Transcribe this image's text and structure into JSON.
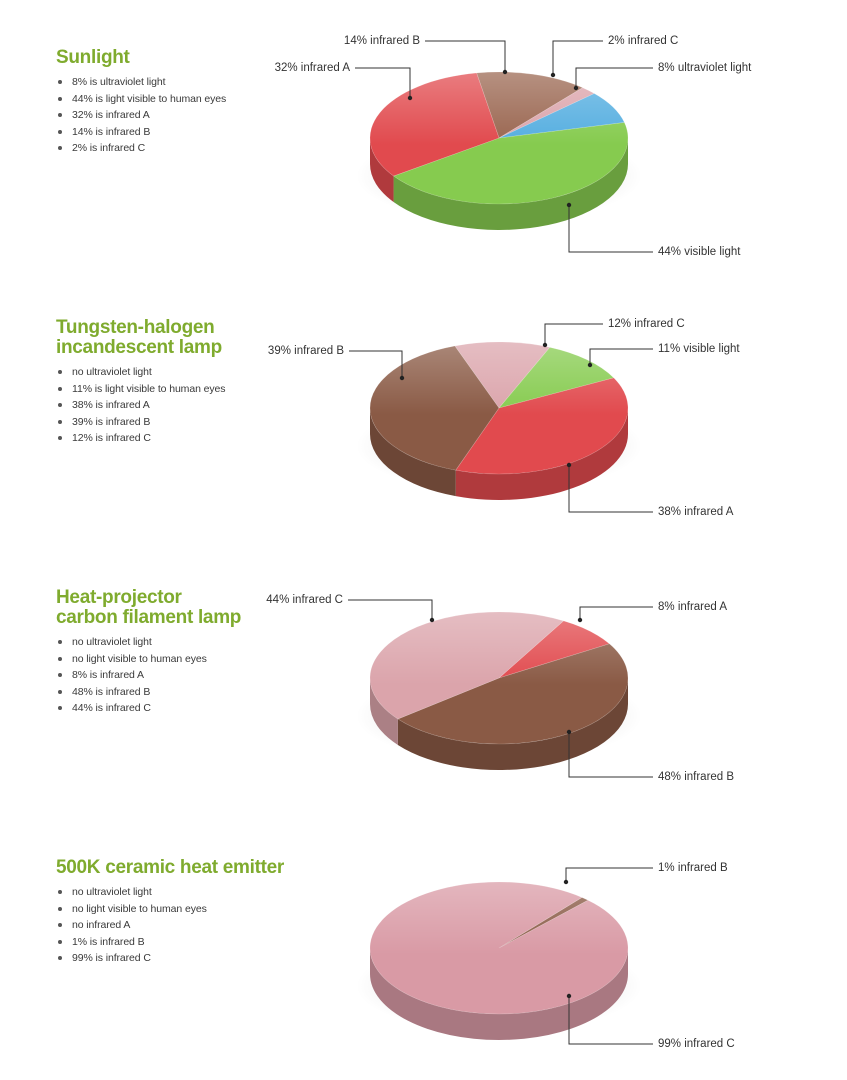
{
  "chart_data": [
    {
      "type": "pie",
      "title": "Sunlight",
      "bullets": [
        "8% is ultraviolet light",
        "44% is light visible to human eyes",
        "32% is infrared A",
        "14% is infrared B",
        "2% is infrared C"
      ],
      "slices": [
        {
          "key": "ir-b",
          "name": "infrared B",
          "value": 14,
          "color": "#9a6650",
          "label": "14% infrared B"
        },
        {
          "key": "ir-c",
          "name": "infrared C",
          "value": 2,
          "color": "#dba4ab",
          "label": "2% infrared C"
        },
        {
          "key": "uv",
          "name": "ultraviolet light",
          "value": 8,
          "color": "#55aee0",
          "label": "8% ultraviolet light"
        },
        {
          "key": "visible",
          "name": "visible light",
          "value": 44,
          "color": "#86cb4f",
          "label": "44% visible light"
        },
        {
          "key": "ir-a",
          "name": "infrared A",
          "value": 32,
          "color": "#e14a4e",
          "label": "32% infrared A"
        }
      ]
    },
    {
      "type": "pie",
      "title": "Tungsten-halogen incandescent lamp",
      "title_lines": [
        "Tungsten-halogen",
        "incandescent lamp"
      ],
      "bullets": [
        "no ultraviolet light",
        "11% is light visible to human eyes",
        "38% is infrared A",
        "39% is infrared B",
        "12% is infrared C"
      ],
      "slices": [
        {
          "key": "ir-c",
          "name": "infrared C",
          "value": 12,
          "color": "#dba4ab",
          "label": "12% infrared C"
        },
        {
          "key": "visible",
          "name": "visible light",
          "value": 11,
          "color": "#86cb4f",
          "label": "11% visible light"
        },
        {
          "key": "ir-a",
          "name": "infrared A",
          "value": 38,
          "color": "#e14a4e",
          "label": "38% infrared A"
        },
        {
          "key": "ir-b",
          "name": "infrared B",
          "value": 39,
          "color": "#8a5a45",
          "label": "39% infrared B"
        }
      ]
    },
    {
      "type": "pie",
      "title": "Heat-projector carbon filament lamp",
      "title_lines": [
        "Heat-projector",
        "carbon filament lamp"
      ],
      "bullets": [
        "no ultraviolet light",
        "no light visible to human eyes",
        "8% is infrared A",
        "48% is infrared B",
        "44% is infrared C"
      ],
      "slices": [
        {
          "key": "ir-a",
          "name": "infrared A",
          "value": 8,
          "color": "#e14a4e",
          "label": "8% infrared A"
        },
        {
          "key": "ir-b",
          "name": "infrared B",
          "value": 48,
          "color": "#8a5a45",
          "label": "48% infrared B"
        },
        {
          "key": "ir-c",
          "name": "infrared C",
          "value": 44,
          "color": "#dba4ab",
          "label": "44% infrared C"
        }
      ]
    },
    {
      "type": "pie",
      "title": "500K ceramic heat emitter",
      "bullets": [
        "no ultraviolet light",
        "no light visible to human eyes",
        "no infrared A",
        "1% is infrared B",
        "99% is infrared C"
      ],
      "slices": [
        {
          "key": "ir-b",
          "name": "infrared B",
          "value": 1,
          "color": "#8a5a45",
          "label": "1% infrared B"
        },
        {
          "key": "ir-c",
          "name": "infrared C",
          "value": 99,
          "color": "#d99aa5",
          "label": "99% infrared C"
        }
      ]
    }
  ]
}
